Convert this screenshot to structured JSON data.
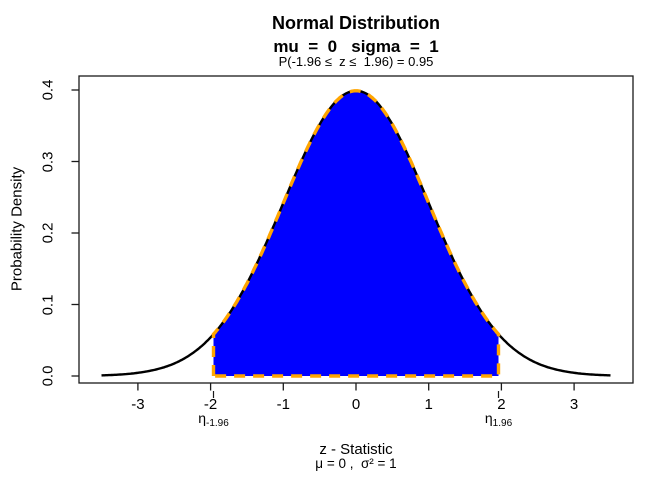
{
  "figure": {
    "background": "#ffffff"
  },
  "chart_data": {
    "type": "area",
    "title": "Normal Distribution",
    "subtitle": "mu  =  0   sigma  =  1",
    "annotation": "P(-1.96 ≤  z ≤  1.96) = 0.95",
    "xlabel": "z - Statistic",
    "xlabel2": "μ = 0 ,  σ² = 1",
    "ylabel": "Probability Density",
    "xlim": [
      -3.8,
      3.8
    ],
    "ylim": [
      0,
      0.42
    ],
    "grid": false,
    "legend": false,
    "x_ticks": [
      -3,
      -2,
      -1,
      0,
      1,
      2,
      3
    ],
    "x_tick_labels": [
      "-3",
      "-2",
      "-1",
      "0",
      "1",
      "2",
      "3"
    ],
    "y_ticks": [
      0,
      0.1,
      0.2,
      0.3,
      0.4
    ],
    "y_tick_labels": [
      "0.0",
      "0.1",
      "0.2",
      "0.3",
      "0.4"
    ],
    "curve": {
      "distribution": "normal",
      "mu": 0,
      "sigma": 1,
      "x_min": -3.5,
      "x_max": 3.5,
      "peak_density": 0.3989
    },
    "curve_color": "#000000",
    "shade": {
      "from": -1.96,
      "to": 1.96,
      "probability": 0.95,
      "fill_color": "#0000ff",
      "border_color": "#ffa500",
      "border_style": "dashed"
    }
  },
  "eta_markers": [
    {
      "symbol": "η",
      "sub": "-1.96",
      "at": -1.96
    },
    {
      "symbol": "η",
      "sub": "1.96",
      "at": 1.96
    }
  ]
}
